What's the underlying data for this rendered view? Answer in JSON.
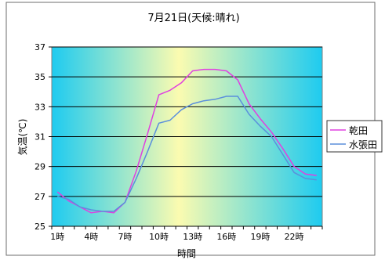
{
  "chart_data": {
    "type": "line",
    "title": "7月21日(天候:晴れ)",
    "xlabel": "時間",
    "ylabel": "気温(℃)",
    "ylim": [
      25,
      37
    ],
    "yticks": [
      "25",
      "27",
      "29",
      "31",
      "33",
      "35",
      "37"
    ],
    "categories": [
      "1時",
      "2時",
      "3時",
      "4時",
      "5時",
      "6時",
      "7時",
      "8時",
      "9時",
      "10時",
      "11時",
      "12時",
      "13時",
      "14時",
      "15時",
      "16時",
      "17時",
      "18時",
      "19時",
      "20時",
      "21時",
      "22時",
      "23時",
      "24時"
    ],
    "tick_labels": [
      "1時",
      "4時",
      "7時",
      "10時",
      "13時",
      "16時",
      "19時",
      "22時"
    ],
    "grid": true,
    "legend_position": "right",
    "series": [
      {
        "name": "乾田",
        "color": "#e040e0",
        "values": [
          27.3,
          26.7,
          26.3,
          25.9,
          26.0,
          25.9,
          26.6,
          28.7,
          31.2,
          33.8,
          34.1,
          34.6,
          35.4,
          35.5,
          35.5,
          35.4,
          34.8,
          33.2,
          32.2,
          31.3,
          30.2,
          29.0,
          28.5,
          28.4
        ]
      },
      {
        "name": "水張田",
        "color": "#5b8fdc",
        "values": [
          27.0,
          26.8,
          26.3,
          26.1,
          26.0,
          26.0,
          26.6,
          28.2,
          30.0,
          31.9,
          32.1,
          32.8,
          33.2,
          33.4,
          33.5,
          33.7,
          33.7,
          32.5,
          31.7,
          31.0,
          29.8,
          28.6,
          28.2,
          28.1
        ]
      }
    ]
  }
}
